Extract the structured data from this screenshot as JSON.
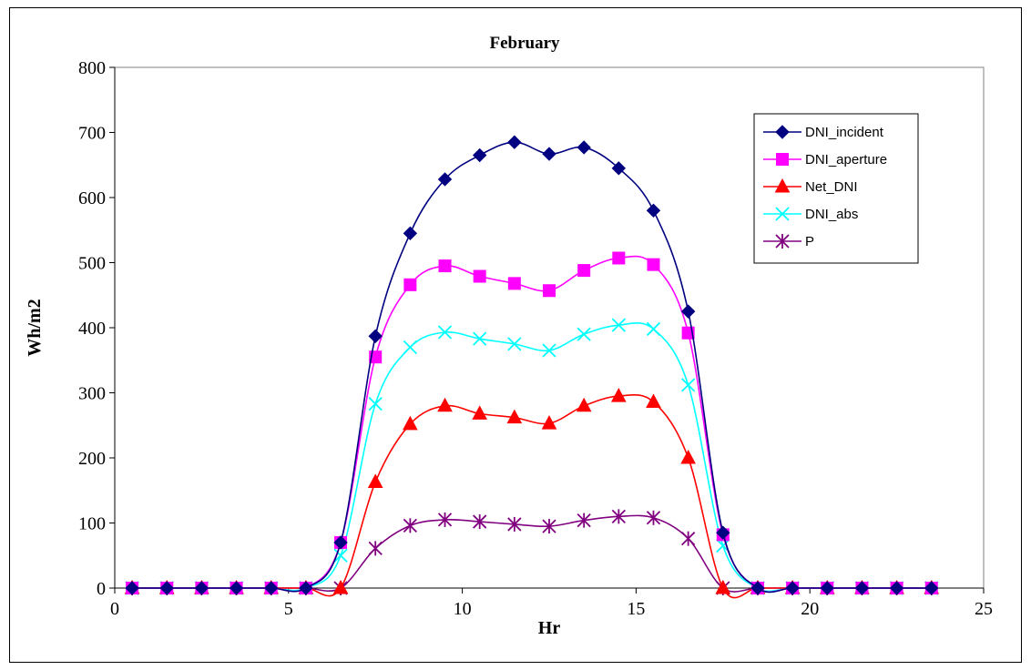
{
  "chart_data": {
    "type": "line",
    "title": "February",
    "xlabel": "Hr",
    "ylabel": "Wh/m2",
    "xlim": [
      0,
      25
    ],
    "ylim": [
      0,
      800
    ],
    "xticks": [
      0,
      5,
      10,
      15,
      20,
      25
    ],
    "yticks": [
      0,
      100,
      200,
      300,
      400,
      500,
      600,
      700,
      800
    ],
    "grid": false,
    "legend_position": "top-right",
    "x": [
      0.5,
      1.5,
      2.5,
      3.5,
      4.5,
      5.5,
      6.5,
      7.5,
      8.5,
      9.5,
      10.5,
      11.5,
      12.5,
      13.5,
      14.5,
      15.5,
      16.5,
      17.5,
      18.5,
      19.5,
      20.5,
      21.5,
      22.5,
      23.5
    ],
    "series": [
      {
        "name": "DNI_incident",
        "color": "#000080",
        "marker": "diamond",
        "values": [
          0,
          0,
          0,
          0,
          0,
          0,
          70,
          387,
          545,
          628,
          665,
          685,
          667,
          677,
          645,
          580,
          425,
          85,
          0,
          0,
          0,
          0,
          0,
          0
        ]
      },
      {
        "name": "DNI_aperture",
        "color": "#FF00FF",
        "marker": "square",
        "values": [
          0,
          0,
          0,
          0,
          0,
          0,
          70,
          355,
          466,
          495,
          479,
          468,
          457,
          488,
          507,
          497,
          392,
          82,
          0,
          0,
          0,
          0,
          0,
          0
        ]
      },
      {
        "name": "Net_DNI",
        "color": "#FF0000",
        "marker": "triangle",
        "values": [
          0,
          0,
          0,
          0,
          0,
          0,
          0,
          163,
          252,
          280,
          268,
          262,
          253,
          280,
          295,
          286,
          200,
          0,
          0,
          0,
          0,
          0,
          0,
          0
        ]
      },
      {
        "name": "DNI_abs",
        "color": "#00FFFF",
        "marker": "x",
        "values": [
          0,
          0,
          0,
          0,
          0,
          0,
          50,
          283,
          370,
          393,
          383,
          375,
          365,
          390,
          404,
          398,
          312,
          65,
          0,
          0,
          0,
          0,
          0,
          0
        ]
      },
      {
        "name": "P",
        "color": "#800080",
        "marker": "star",
        "values": [
          0,
          0,
          0,
          0,
          0,
          0,
          0,
          61,
          96,
          105,
          102,
          98,
          95,
          104,
          110,
          108,
          76,
          0,
          0,
          0,
          0,
          0,
          0,
          0
        ]
      }
    ]
  }
}
